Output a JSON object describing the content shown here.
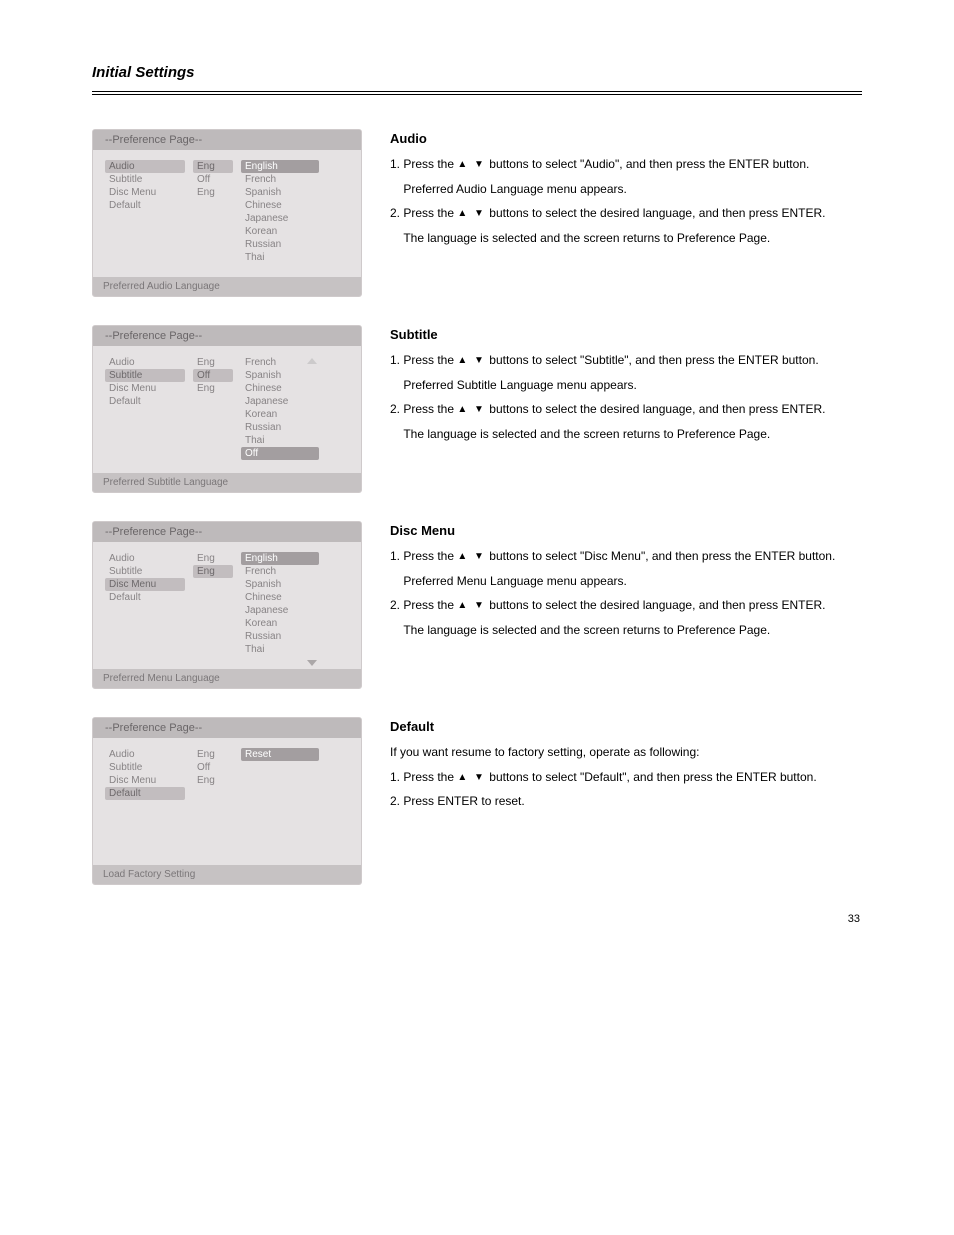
{
  "page": {
    "heading": "Initial Settings",
    "page_number": "33",
    "arrow_glyphs": "▲ ▼"
  },
  "sections": [
    {
      "id": "audio",
      "title": "Audio",
      "panel_title": "--Preference Page--",
      "footer": "Preferred Audio Language",
      "labels": [
        "Audio",
        "Subtitle",
        "Disc Menu",
        "Default"
      ],
      "values": [
        "Eng",
        "Off",
        "Eng",
        ""
      ],
      "options": [
        "English",
        "French",
        "Spanish",
        "Chinese",
        "Japanese",
        "Korean",
        "Russian",
        "Thai"
      ],
      "step1_a": "1. Press the ",
      "step1_b": " buttons to select \"Audio\", and then press the ENTER button.",
      "step1_note": "Preferred Audio Language menu appears.",
      "step2_a": "2. Press the ",
      "step2_b": " buttons to select the desired language, and then press ENTER.",
      "step2_note": "The language is selected and the screen returns to Preference Page."
    },
    {
      "id": "subtitle",
      "title": "Subtitle",
      "panel_title": "--Preference Page--",
      "footer": "Preferred Subtitle Language",
      "labels": [
        "Audio",
        "Subtitle",
        "Disc Menu",
        "Default"
      ],
      "values": [
        "Eng",
        "Off",
        "Eng",
        ""
      ],
      "options": [
        "French",
        "Spanish",
        "Chinese",
        "Japanese",
        "Korean",
        "Russian",
        "Thai",
        "Off"
      ],
      "step1_a": "1. Press the ",
      "step1_b": " buttons to select \"Subtitle\", and then press the ENTER button.",
      "step1_note": "Preferred Subtitle Language menu appears.",
      "step2_a": "2. Press the ",
      "step2_b": " buttons to select the desired language, and then press ENTER.",
      "step2_note": "The language is selected and the screen returns to Preference Page."
    },
    {
      "id": "discmenu",
      "title": "Disc Menu",
      "panel_title": "--Preference Page--",
      "footer": "Preferred Menu Language",
      "labels": [
        "Audio",
        "Subtitle",
        "Disc Menu",
        "Default"
      ],
      "values": [
        "Eng",
        "",
        "Eng",
        ""
      ],
      "options": [
        "English",
        "French",
        "Spanish",
        "Chinese",
        "Japanese",
        "Korean",
        "Russian",
        "Thai"
      ],
      "step1_a": "1. Press the ",
      "step1_b": " buttons to select \"Disc Menu\", and then press the ENTER button.",
      "step1_note": "Preferred Menu Language menu appears.",
      "step2_a": "2. Press the ",
      "step2_b": " buttons to select the desired language, and then press ENTER.",
      "step2_note": "The language is selected and the screen returns to Preference Page."
    },
    {
      "id": "default",
      "title": "Default",
      "panel_title": "--Preference Page--",
      "footer": "Load Factory Setting",
      "labels": [
        "Audio",
        "Subtitle",
        "Disc Menu",
        "Default"
      ],
      "values": [
        "Eng",
        "Off",
        "Eng",
        ""
      ],
      "options": [
        "",
        "",
        "",
        "Reset"
      ],
      "intro": "If you want resume to factory setting, operate as following:",
      "step1_a": "1. Press the ",
      "step1_b": " buttons to select \"Default\", and then press the ENTER button.",
      "step2": "2. Press ENTER to reset."
    }
  ]
}
